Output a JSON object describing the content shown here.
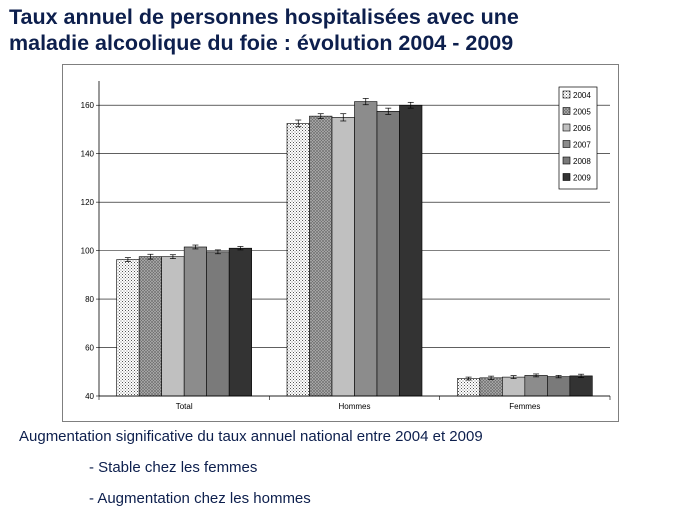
{
  "slide": {
    "title_line1": "Taux annuel de personnes hospitalisées avec une",
    "title_line2": "maladie alcoolique du foie : évolution 2004 - 2009"
  },
  "notes": {
    "main": "Augmentation significative du taux annuel national entre 2004 et 2009",
    "point1": "- Stable chez les femmes",
    "point2": "- Augmentation chez les hommes"
  },
  "colors": {
    "2005": "#9a9a9a",
    "2006": "#c0c0c0",
    "2007": "#8c8c8c",
    "2008": "#7a7a7a",
    "2009": "#333333"
  },
  "chart_data": {
    "type": "bar",
    "title": "",
    "xlabel": "",
    "ylabel": "",
    "categories": [
      "Total",
      "Hommes",
      "Femmes"
    ],
    "ylim": [
      40,
      170
    ],
    "yticks": [
      40,
      60,
      80,
      100,
      120,
      140,
      160
    ],
    "grid": true,
    "legend_position": "top-right",
    "error_bars": true,
    "series": [
      {
        "name": "2004",
        "values": [
          96.3,
          152.5,
          47.2
        ],
        "errors": [
          0.8,
          1.4,
          0.6
        ]
      },
      {
        "name": "2005",
        "values": [
          97.5,
          155.5,
          47.5
        ],
        "errors": [
          1.0,
          1.0,
          0.7
        ]
      },
      {
        "name": "2006",
        "values": [
          97.5,
          155.0,
          47.8
        ],
        "errors": [
          0.8,
          1.5,
          0.6
        ]
      },
      {
        "name": "2007",
        "values": [
          101.5,
          161.5,
          48.5
        ],
        "errors": [
          0.8,
          1.3,
          0.6
        ]
      },
      {
        "name": "2008",
        "values": [
          99.5,
          157.5,
          48.0
        ],
        "errors": [
          0.8,
          1.3,
          0.5
        ]
      },
      {
        "name": "2009",
        "values": [
          101.0,
          160.0,
          48.3
        ],
        "errors": [
          0.7,
          1.2,
          0.7
        ]
      }
    ]
  }
}
